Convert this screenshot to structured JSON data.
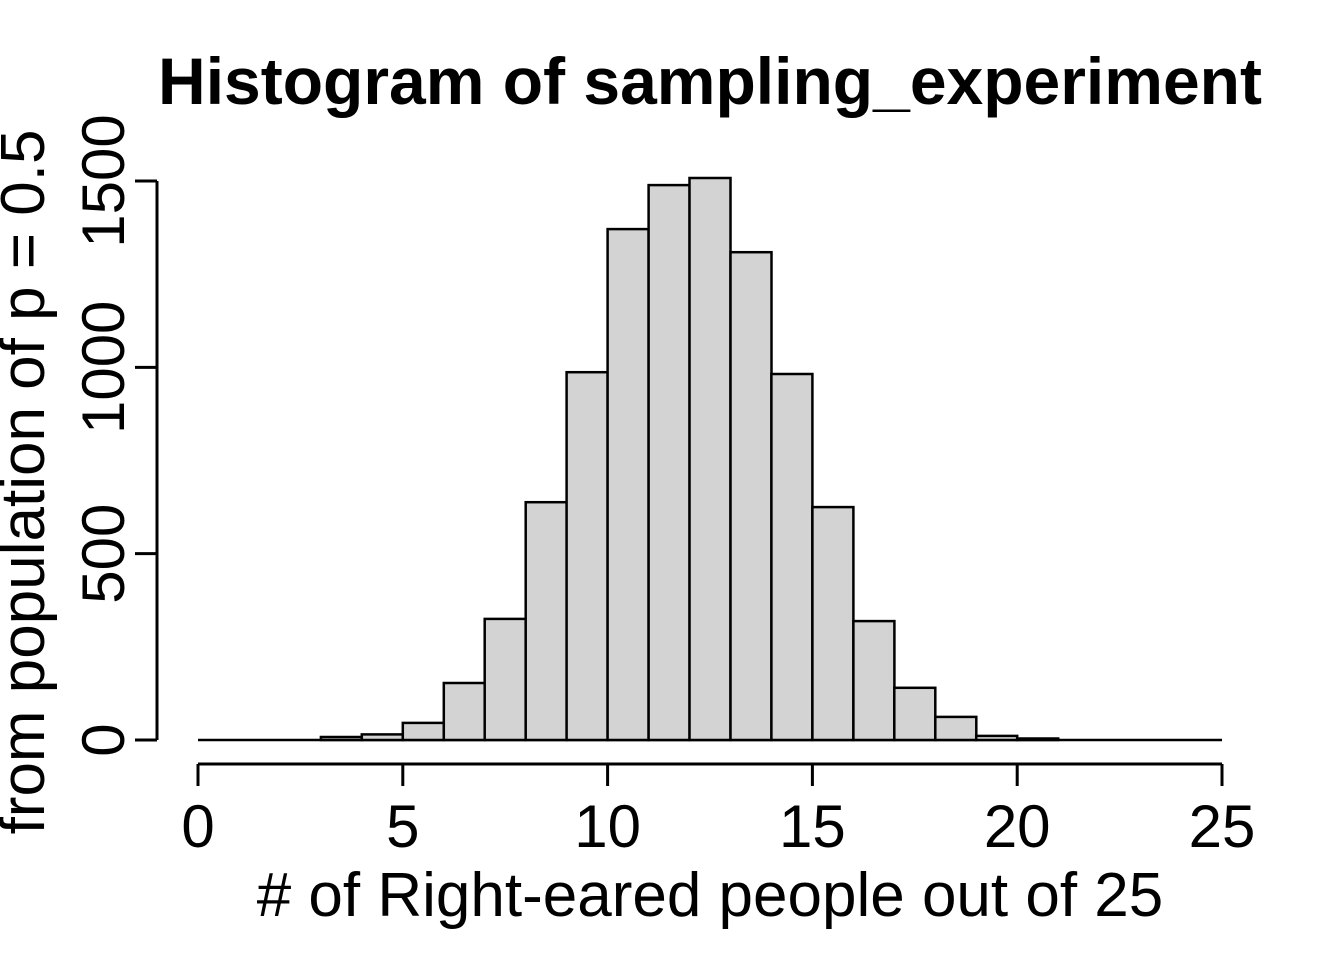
{
  "chart_data": {
    "type": "bar",
    "subtype": "histogram",
    "title": "Histogram of sampling_experiment",
    "xlabel": "# of Right-eared people out of 25",
    "ylabel": "from population of p = 0.5",
    "xlim": [
      0,
      25
    ],
    "ylim": [
      0,
      1500
    ],
    "x_ticks": [
      0,
      5,
      10,
      15,
      20,
      25
    ],
    "y_ticks": [
      0,
      500,
      1000,
      1500
    ],
    "grid": "off",
    "legend": "none",
    "bin_width": 1,
    "bin_edges": [
      3,
      4,
      5,
      6,
      7,
      8,
      9,
      10,
      11,
      12,
      13,
      14,
      15,
      16,
      17,
      18,
      19,
      20,
      21
    ],
    "counts": [
      8,
      15,
      46,
      153,
      325,
      638,
      987,
      1371,
      1489,
      1508,
      1309,
      982,
      625,
      319,
      140,
      62,
      11,
      4
    ],
    "bar_fill": "#d3d3d3",
    "bar_stroke": "#000000",
    "axis_color": "#000000",
    "background": "#ffffff"
  }
}
